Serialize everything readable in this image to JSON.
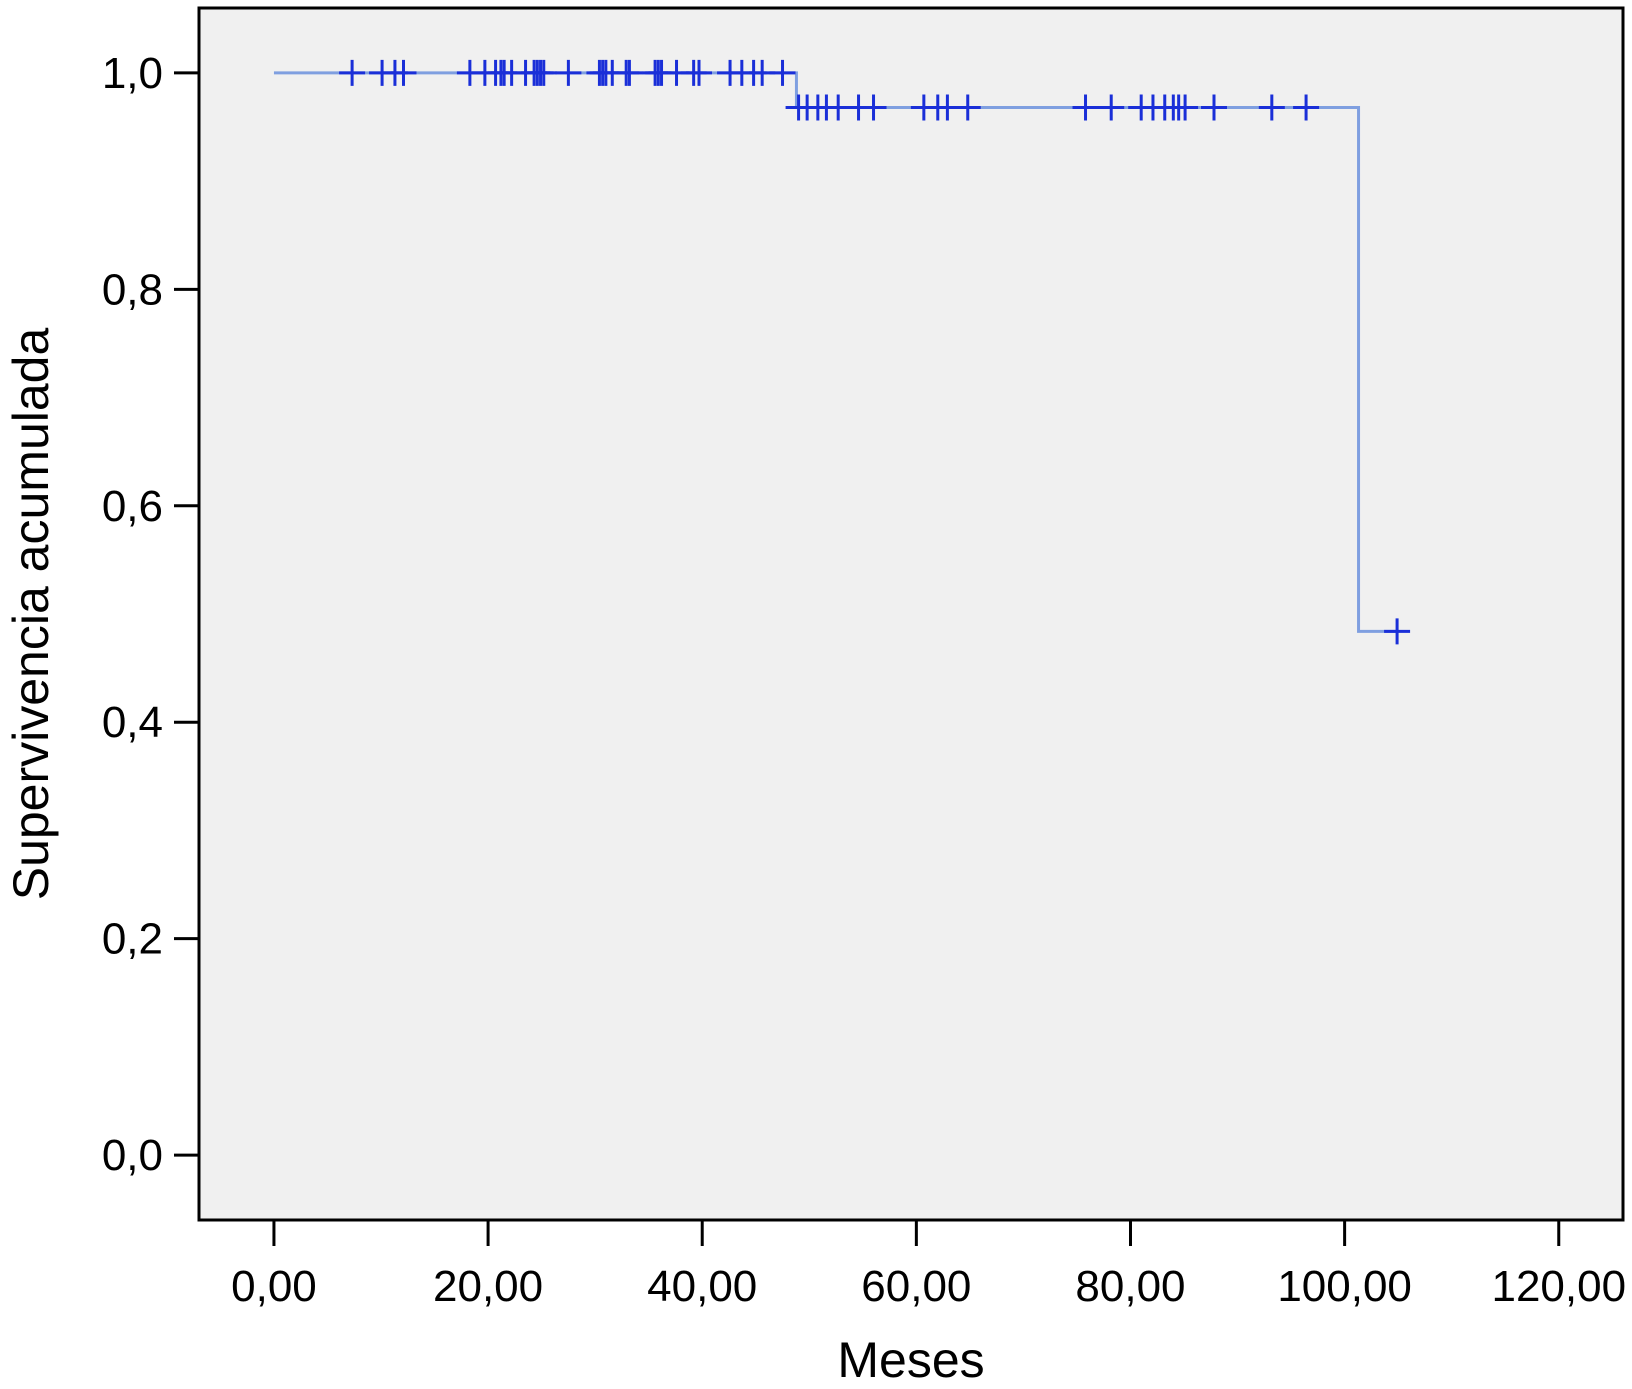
{
  "chart_data": {
    "type": "line",
    "subtype": "kaplan-meier-step",
    "title": "",
    "xlabel": "Meses",
    "ylabel": "Supervivencia acumulada",
    "xlim": [
      -7,
      126
    ],
    "ylim": [
      -0.06,
      1.06
    ],
    "x_ticks": [
      0,
      20,
      40,
      60,
      80,
      100,
      120
    ],
    "x_tick_labels": [
      "0,00",
      "20,00",
      "40,00",
      "60,00",
      "80,00",
      "100,00",
      "120,00"
    ],
    "y_ticks": [
      0,
      0.2,
      0.4,
      0.6,
      0.8,
      1.0
    ],
    "y_tick_labels": [
      "0,0",
      "0,2",
      "0,4",
      "0,6",
      "0,8",
      "1,0"
    ],
    "grid": false,
    "plot_background": "#f0f0f0",
    "curve_color": "#7f9fe0",
    "censor_color": "#1a2fd8",
    "steps": [
      {
        "x": 0,
        "y": 1.0
      },
      {
        "x": 48.8,
        "y": 0.968
      },
      {
        "x": 101.3,
        "y": 0.484
      }
    ],
    "curve_end_x": 105,
    "censored": [
      {
        "x": 7.3,
        "y": 1.0
      },
      {
        "x": 10.1,
        "y": 1.0
      },
      {
        "x": 11.3,
        "y": 1.0
      },
      {
        "x": 12.1,
        "y": 1.0
      },
      {
        "x": 18.3,
        "y": 1.0
      },
      {
        "x": 19.7,
        "y": 1.0
      },
      {
        "x": 20.7,
        "y": 1.0
      },
      {
        "x": 21.2,
        "y": 1.0
      },
      {
        "x": 21.5,
        "y": 1.0
      },
      {
        "x": 22.2,
        "y": 1.0
      },
      {
        "x": 23.5,
        "y": 1.0
      },
      {
        "x": 24.3,
        "y": 1.0
      },
      {
        "x": 24.6,
        "y": 1.0
      },
      {
        "x": 24.9,
        "y": 1.0
      },
      {
        "x": 25.2,
        "y": 1.0
      },
      {
        "x": 27.5,
        "y": 1.0
      },
      {
        "x": 30.4,
        "y": 1.0
      },
      {
        "x": 30.7,
        "y": 1.0
      },
      {
        "x": 31.0,
        "y": 1.0
      },
      {
        "x": 31.6,
        "y": 1.0
      },
      {
        "x": 32.9,
        "y": 1.0
      },
      {
        "x": 33.2,
        "y": 1.0
      },
      {
        "x": 35.6,
        "y": 1.0
      },
      {
        "x": 35.9,
        "y": 1.0
      },
      {
        "x": 36.2,
        "y": 1.0
      },
      {
        "x": 37.6,
        "y": 1.0
      },
      {
        "x": 39.2,
        "y": 1.0
      },
      {
        "x": 39.7,
        "y": 1.0
      },
      {
        "x": 42.6,
        "y": 1.0
      },
      {
        "x": 43.7,
        "y": 1.0
      },
      {
        "x": 44.8,
        "y": 1.0
      },
      {
        "x": 45.6,
        "y": 1.0
      },
      {
        "x": 47.5,
        "y": 1.0
      },
      {
        "x": 49.0,
        "y": 0.968
      },
      {
        "x": 49.8,
        "y": 0.968
      },
      {
        "x": 50.8,
        "y": 0.968
      },
      {
        "x": 51.6,
        "y": 0.968
      },
      {
        "x": 52.7,
        "y": 0.968
      },
      {
        "x": 54.6,
        "y": 0.968
      },
      {
        "x": 56.0,
        "y": 0.968
      },
      {
        "x": 60.7,
        "y": 0.968
      },
      {
        "x": 62.0,
        "y": 0.968
      },
      {
        "x": 62.9,
        "y": 0.968
      },
      {
        "x": 64.8,
        "y": 0.968
      },
      {
        "x": 75.8,
        "y": 0.968
      },
      {
        "x": 78.2,
        "y": 0.968
      },
      {
        "x": 81.0,
        "y": 0.968
      },
      {
        "x": 82.1,
        "y": 0.968
      },
      {
        "x": 83.2,
        "y": 0.968
      },
      {
        "x": 84.0,
        "y": 0.968
      },
      {
        "x": 84.5,
        "y": 0.968
      },
      {
        "x": 85.1,
        "y": 0.968
      },
      {
        "x": 87.8,
        "y": 0.968
      },
      {
        "x": 93.2,
        "y": 0.968
      },
      {
        "x": 96.4,
        "y": 0.968
      },
      {
        "x": 104.9,
        "y": 0.484
      }
    ]
  }
}
